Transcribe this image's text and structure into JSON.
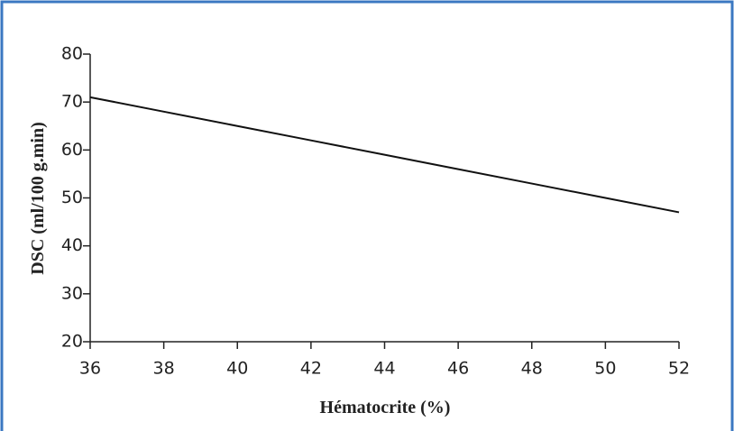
{
  "chart_data": {
    "type": "line",
    "x_label": "Hématocrite (%)",
    "y_label": "DSC (ml/100 g.min)",
    "x": [
      36,
      38,
      40,
      42,
      44,
      46,
      48,
      50,
      52
    ],
    "series": [
      {
        "color": "#111111",
        "values": [
          71,
          68,
          65,
          62,
          59,
          56,
          53,
          50,
          47
        ]
      }
    ],
    "xlim": [
      36,
      52
    ],
    "xticks": [
      36,
      38,
      40,
      42,
      44,
      46,
      48,
      50,
      52
    ],
    "ylim": [
      20,
      80
    ],
    "yticks": [
      20,
      30,
      40,
      50,
      60,
      70,
      80
    ]
  }
}
